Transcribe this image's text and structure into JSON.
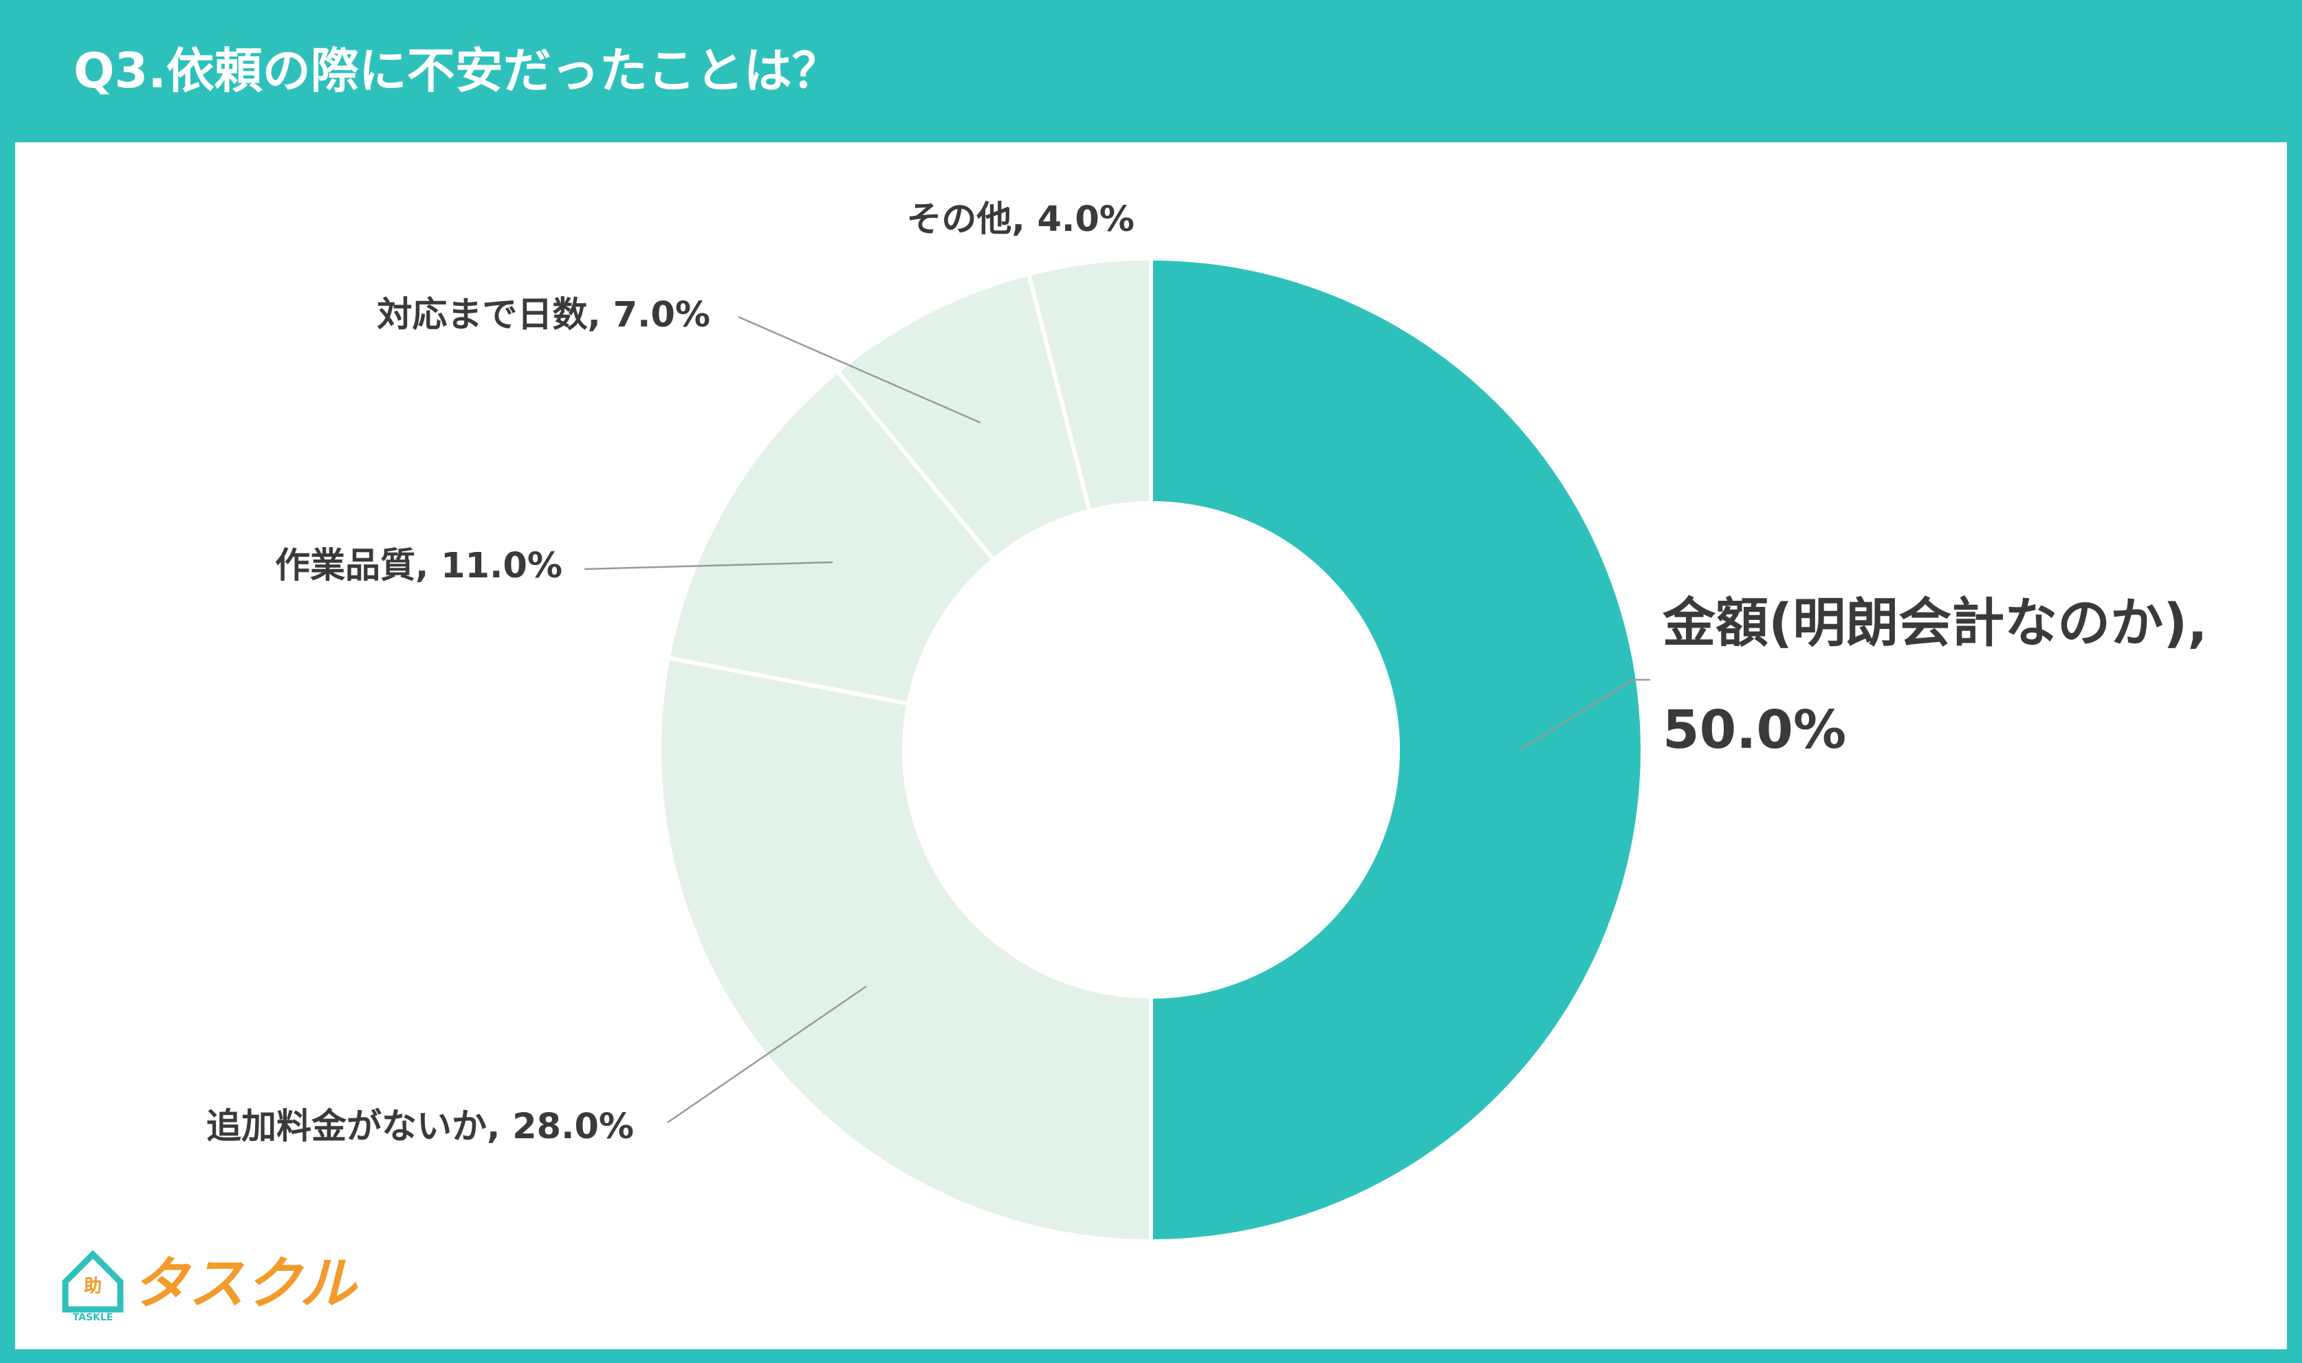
{
  "chart_data": {
    "type": "donut",
    "title": "Q3.依頼の際に不安だったことは？",
    "categories": [
      "金額(明朗会計なのか)",
      "追加料金がないか",
      "作業品質",
      "対応まで日数",
      "その他"
    ],
    "values": [
      50,
      28,
      11,
      7,
      4
    ],
    "value_labels": [
      "金額(明朗会計なのか), 50.0%",
      "追加料金がないか, 28.0%",
      "作業品質, 11.0%",
      "対応まで日数, 7.0%",
      "その他, 4.0%"
    ],
    "colors": [
      "#2ec1bc",
      "#e2f2e8",
      "#e2f2e8",
      "#e2f2e8",
      "#e2f2e8"
    ]
  },
  "logo": {
    "text": "タスクル",
    "subtext": "TASKLE",
    "icon_text": "助"
  }
}
